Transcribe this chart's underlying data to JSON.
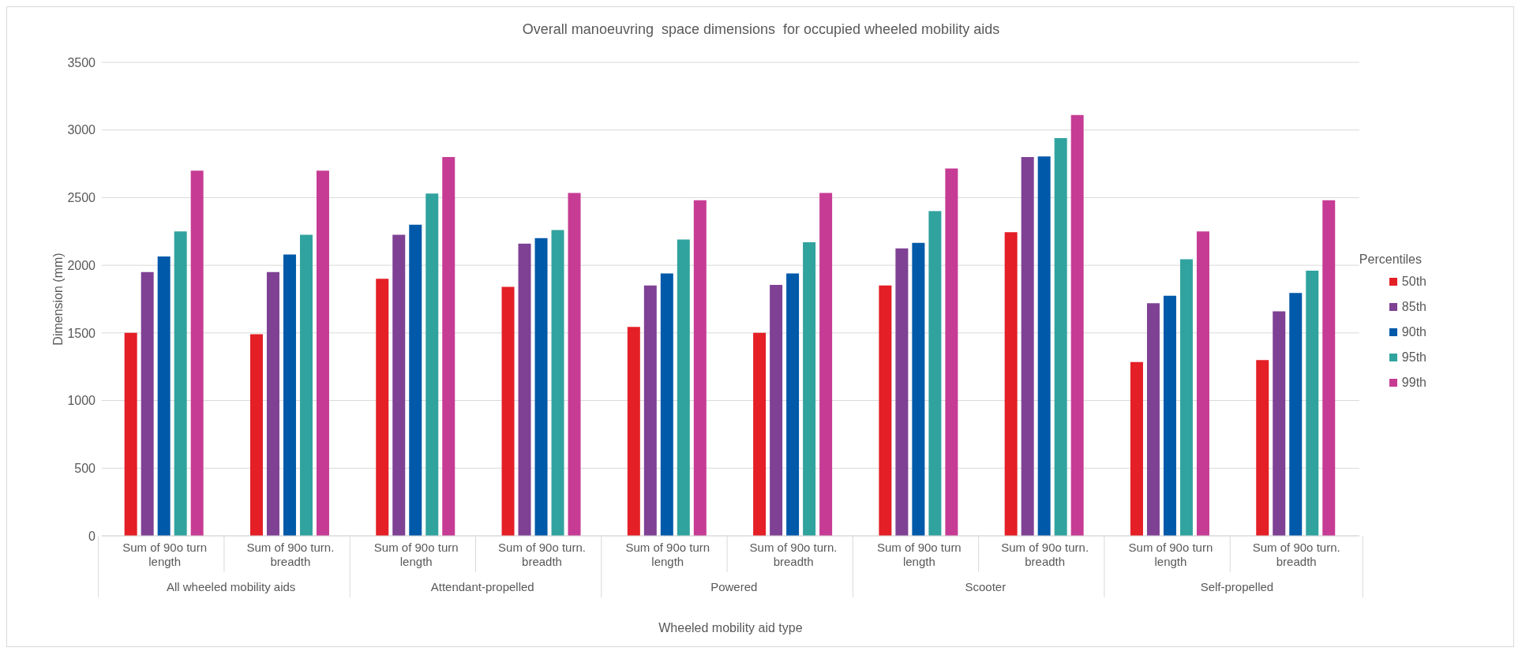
{
  "chart_data": {
    "type": "bar",
    "title": "Overall manoeuvring  space dimensions  for occupied wheeled mobility aids",
    "xlabel": "Wheeled mobility  aid type",
    "ylabel": "Dimension  (mm)",
    "legend_title": "Percentiles",
    "categories": [
      "Sum of 90o turn length",
      "Sum of 90o turn. breadth",
      "Sum of 90o turn length",
      "Sum of 90o turn. breadth",
      "Sum of 90o turn length",
      "Sum of 90o turn. breadth",
      "Sum of 90o turn length",
      "Sum of 90o turn. breadth",
      "Sum of 90o turn length",
      "Sum of 90o turn. breadth"
    ],
    "annotations": [
      "All wheeled mobility aids",
      "Attendant-propelled",
      "Powered",
      "Scooter",
      "Self-propelled"
    ],
    "series": [
      {
        "name": "50th",
        "color": "#e41f26",
        "values": [
          1500,
          1490,
          1900,
          1840,
          1545,
          1500,
          1850,
          2245,
          1285,
          1300
        ]
      },
      {
        "name": "85th",
        "color": "#7e4194",
        "values": [
          1950,
          1950,
          2225,
          2160,
          1850,
          1855,
          2125,
          2800,
          1720,
          1660
        ]
      },
      {
        "name": "90th",
        "color": "#0059a9",
        "values": [
          2065,
          2080,
          2300,
          2200,
          1940,
          1940,
          2165,
          2805,
          1775,
          1795
        ]
      },
      {
        "name": "95th",
        "color": "#31a39f",
        "values": [
          2250,
          2225,
          2530,
          2260,
          2190,
          2170,
          2400,
          2940,
          2045,
          1960
        ]
      },
      {
        "name": "99th",
        "color": "#c63c94",
        "values": [
          2700,
          2700,
          2800,
          2535,
          2480,
          2535,
          2715,
          3110,
          2250,
          2480
        ]
      }
    ],
    "ylim": [
      0,
      3500
    ],
    "yticks": [
      0,
      500,
      1000,
      1500,
      2000,
      2500,
      3000,
      3500
    ],
    "grid": "y",
    "legend": "right"
  }
}
